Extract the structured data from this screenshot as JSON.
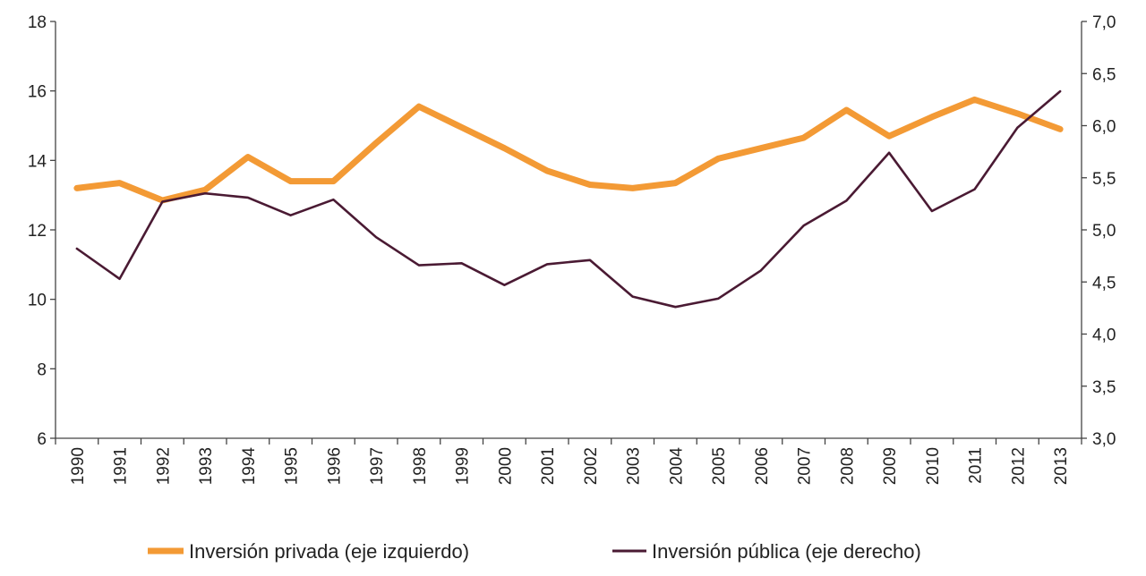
{
  "chart_data": {
    "type": "line",
    "x": [
      "1990",
      "1991",
      "1992",
      "1993",
      "1994",
      "1995",
      "1996",
      "1997",
      "1998",
      "1999",
      "2000",
      "2001",
      "2002",
      "2003",
      "2004",
      "2005",
      "2006",
      "2007",
      "2008",
      "2009",
      "2010",
      "2011",
      "2012",
      "2013"
    ],
    "y_left": {
      "ylim": [
        6,
        18
      ],
      "ticks": [
        "6",
        "8",
        "10",
        "12",
        "14",
        "16",
        "18"
      ]
    },
    "y_right": {
      "ylim": [
        3.0,
        7.0
      ],
      "ticks": [
        "3,0",
        "3,5",
        "4,0",
        "4,5",
        "5,0",
        "5,5",
        "6,0",
        "6,5",
        "7,0"
      ]
    },
    "series": [
      {
        "name": "Inversión privada (eje izquierdo)",
        "axis": "left",
        "color": "#F39A35",
        "values": [
          13.2,
          13.35,
          12.85,
          13.15,
          14.1,
          13.4,
          13.4,
          14.5,
          15.55,
          14.95,
          14.35,
          13.7,
          13.3,
          13.2,
          13.35,
          14.05,
          14.35,
          14.65,
          15.45,
          14.7,
          15.25,
          15.75,
          15.35,
          14.9
        ]
      },
      {
        "name": "Inversión pública (eje derecho)",
        "axis": "right",
        "color": "#4A1A33",
        "values": [
          4.82,
          4.53,
          5.27,
          5.35,
          5.31,
          5.14,
          5.29,
          4.93,
          4.66,
          4.68,
          4.47,
          4.67,
          4.71,
          4.36,
          4.26,
          4.34,
          4.61,
          5.04,
          5.28,
          5.74,
          5.18,
          5.39,
          5.98,
          6.33
        ]
      }
    ],
    "legend": "bottom",
    "grid": false
  }
}
